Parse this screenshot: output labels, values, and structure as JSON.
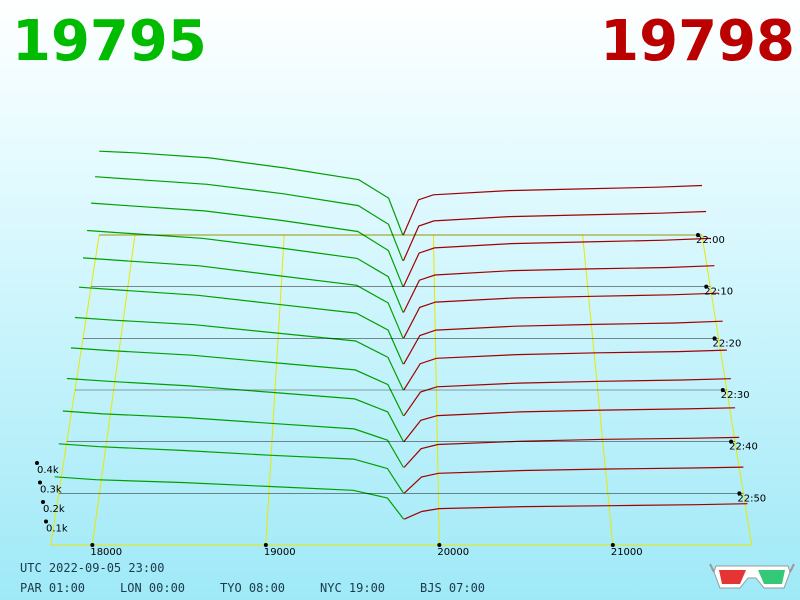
{
  "chart_data": {
    "type": "depth3d",
    "bid": 19795,
    "ask": 19798,
    "bid_color": "#00bb00",
    "ask_color": "#bb0000",
    "xlim": [
      17760,
      21800
    ],
    "xticks": [
      18000,
      19000,
      20000,
      21000
    ],
    "zlim": [
      0,
      500
    ],
    "zticks": [
      {
        "value": 100,
        "label": "0.1k"
      },
      {
        "value": 200,
        "label": "0.2k"
      },
      {
        "value": 300,
        "label": "0.3k"
      },
      {
        "value": 400,
        "label": "0.4k"
      }
    ],
    "tlim": [
      0,
      60
    ],
    "tticks": [
      {
        "value": 0,
        "label": "22:00"
      },
      {
        "value": 10,
        "label": "22:10"
      },
      {
        "value": 20,
        "label": "22:20"
      },
      {
        "value": 30,
        "label": "22:30"
      },
      {
        "value": 40,
        "label": "22:40"
      },
      {
        "value": 50,
        "label": "22:50"
      }
    ],
    "rows": [
      0,
      5,
      10,
      15,
      20,
      25,
      30,
      35,
      40,
      45,
      50,
      55
    ],
    "grid_color": "#e8e800",
    "series": [
      {
        "color": "#00a000",
        "x": [
          17760,
          18000,
          18500,
          19000,
          19500,
          19700,
          19795
        ],
        "values": [
          [
            500,
            490,
            460,
            400,
            330,
            220,
            0
          ],
          [
            495,
            480,
            450,
            395,
            325,
            215,
            0
          ],
          [
            485,
            470,
            440,
            385,
            320,
            210,
            0
          ],
          [
            470,
            455,
            425,
            370,
            310,
            205,
            0
          ],
          [
            455,
            440,
            410,
            355,
            300,
            200,
            0
          ],
          [
            430,
            415,
            385,
            335,
            285,
            190,
            0
          ],
          [
            400,
            385,
            360,
            315,
            270,
            180,
            0
          ],
          [
            370,
            355,
            330,
            290,
            250,
            170,
            0
          ],
          [
            340,
            325,
            300,
            265,
            230,
            160,
            0
          ],
          [
            300,
            285,
            265,
            235,
            205,
            145,
            0
          ],
          [
            260,
            245,
            225,
            200,
            180,
            130,
            0
          ],
          [
            220,
            205,
            190,
            170,
            150,
            110,
            0
          ]
        ]
      },
      {
        "color": "#a00000",
        "x": [
          19798,
          19900,
          20000,
          20500,
          21000,
          21500,
          21800
        ],
        "values": [
          [
            0,
            210,
            240,
            265,
            275,
            285,
            295
          ],
          [
            0,
            205,
            235,
            260,
            270,
            280,
            290
          ],
          [
            0,
            195,
            225,
            250,
            260,
            270,
            280
          ],
          [
            0,
            185,
            215,
            240,
            250,
            258,
            268
          ],
          [
            0,
            175,
            205,
            228,
            238,
            246,
            255
          ],
          [
            0,
            160,
            190,
            212,
            222,
            230,
            240
          ],
          [
            0,
            145,
            175,
            195,
            205,
            212,
            220
          ],
          [
            0,
            130,
            158,
            178,
            188,
            195,
            202
          ],
          [
            0,
            115,
            140,
            160,
            170,
            176,
            182
          ],
          [
            0,
            100,
            122,
            140,
            150,
            155,
            160
          ],
          [
            0,
            85,
            105,
            120,
            128,
            133,
            138
          ],
          [
            0,
            40,
            55,
            65,
            70,
            75,
            80
          ]
        ]
      }
    ]
  },
  "footer": {
    "utc": "UTC 2022-09-05 23:00",
    "clocks": [
      "PAR 01:00",
      "LON 00:00",
      "TYO 08:00",
      "NYC 19:00",
      "BJS 07:00"
    ]
  }
}
